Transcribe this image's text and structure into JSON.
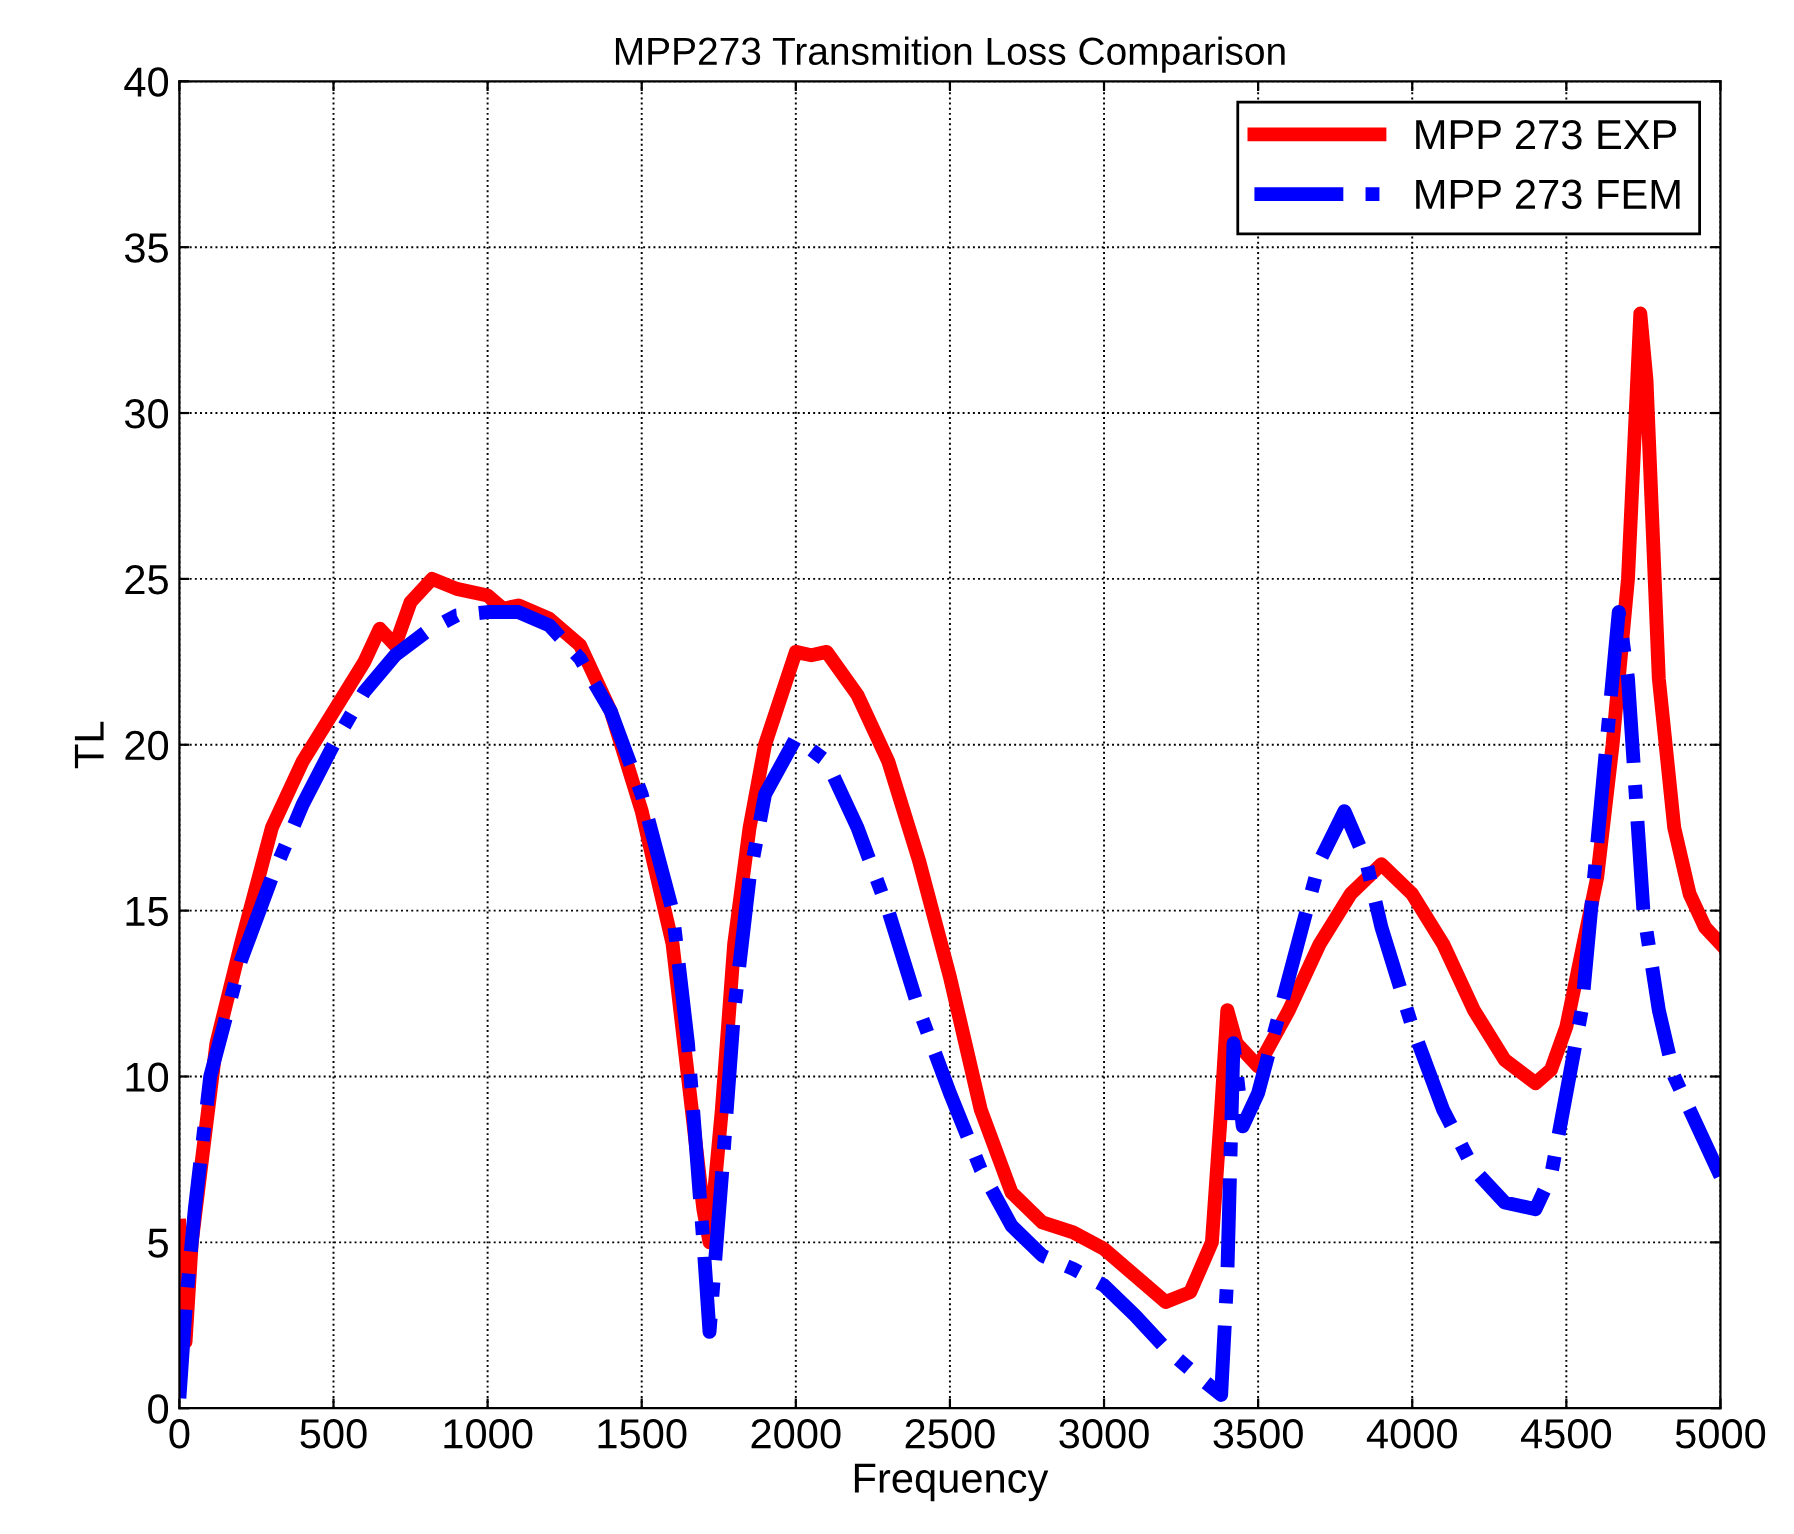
{
  "chart_data": {
    "type": "line",
    "title": "MPP273 Transmition Loss Comparison",
    "xlabel": "Frequency",
    "ylabel": "TL",
    "xlim": [
      0,
      5000
    ],
    "ylim": [
      0,
      40
    ],
    "xticks": [
      0,
      500,
      1000,
      1500,
      2000,
      2500,
      3000,
      3500,
      4000,
      4500,
      5000
    ],
    "yticks": [
      0,
      5,
      10,
      15,
      20,
      25,
      30,
      35,
      40
    ],
    "grid": true,
    "legend": "top right",
    "series": [
      {
        "name": "MPP 273 EXP",
        "color": "#ff0000",
        "line_style": "solid",
        "x": [
          0,
          20,
          40,
          80,
          120,
          200,
          300,
          400,
          500,
          600,
          650,
          700,
          750,
          820,
          900,
          1000,
          1050,
          1100,
          1200,
          1300,
          1400,
          1500,
          1600,
          1650,
          1700,
          1720,
          1760,
          1800,
          1850,
          1900,
          2000,
          2050,
          2100,
          2200,
          2300,
          2400,
          2500,
          2600,
          2700,
          2800,
          2900,
          3000,
          3100,
          3200,
          3280,
          3350,
          3380,
          3400,
          3430,
          3500,
          3600,
          3700,
          3800,
          3900,
          4000,
          4100,
          4200,
          4300,
          4400,
          4450,
          4500,
          4600,
          4650,
          4700,
          4740,
          4760,
          4800,
          4850,
          4900,
          4950,
          5000
        ],
        "values": [
          5.5,
          2,
          5,
          8,
          11,
          14,
          17.5,
          19.5,
          21,
          22.5,
          23.5,
          23,
          24.3,
          25,
          24.7,
          24.5,
          24.1,
          24.2,
          23.8,
          23,
          21,
          18,
          14,
          10,
          6,
          5,
          9,
          14,
          17.5,
          20,
          22.8,
          22.7,
          22.8,
          21.5,
          19.5,
          16.5,
          13,
          9,
          6.5,
          5.6,
          5.3,
          4.8,
          4,
          3.2,
          3.5,
          5,
          9,
          12,
          11,
          10.3,
          12,
          14,
          15.5,
          16.4,
          15.5,
          14,
          12,
          10.5,
          9.8,
          10.2,
          11.5,
          16,
          20,
          25,
          33,
          31,
          22,
          17.5,
          15.5,
          14.5,
          14
        ]
      },
      {
        "name": "MPP 273 FEM",
        "color": "#0000ff",
        "line_style": "dashdot",
        "x": [
          0,
          20,
          50,
          100,
          200,
          300,
          400,
          500,
          600,
          700,
          800,
          900,
          1000,
          1100,
          1200,
          1300,
          1400,
          1500,
          1600,
          1650,
          1700,
          1720,
          1760,
          1800,
          1850,
          1900,
          2000,
          2100,
          2200,
          2300,
          2400,
          2500,
          2600,
          2700,
          2800,
          2900,
          3000,
          3100,
          3200,
          3300,
          3380,
          3400,
          3420,
          3450,
          3500,
          3600,
          3700,
          3780,
          3850,
          3900,
          4000,
          4100,
          4200,
          4300,
          4400,
          4450,
          4550,
          4600,
          4650,
          4670,
          4700,
          4750,
          4800,
          4850,
          4900,
          5000
        ],
        "values": [
          0.3,
          3,
          6,
          10,
          13.5,
          16,
          18.2,
          20,
          21.6,
          22.7,
          23.4,
          23.9,
          24,
          24,
          23.6,
          22.6,
          21,
          18.5,
          15,
          11,
          5,
          2.3,
          7,
          12,
          16,
          18.5,
          20.2,
          19.5,
          17.5,
          15,
          12,
          9.5,
          7.2,
          5.5,
          4.6,
          4.2,
          3.7,
          2.8,
          1.8,
          1,
          0.4,
          4,
          11,
          8.5,
          9.5,
          13,
          16.5,
          18,
          16.5,
          14.5,
          11.5,
          9,
          7.2,
          6.2,
          6,
          7,
          12,
          17,
          22,
          24,
          22,
          15,
          12,
          10,
          9,
          7
        ]
      }
    ]
  }
}
